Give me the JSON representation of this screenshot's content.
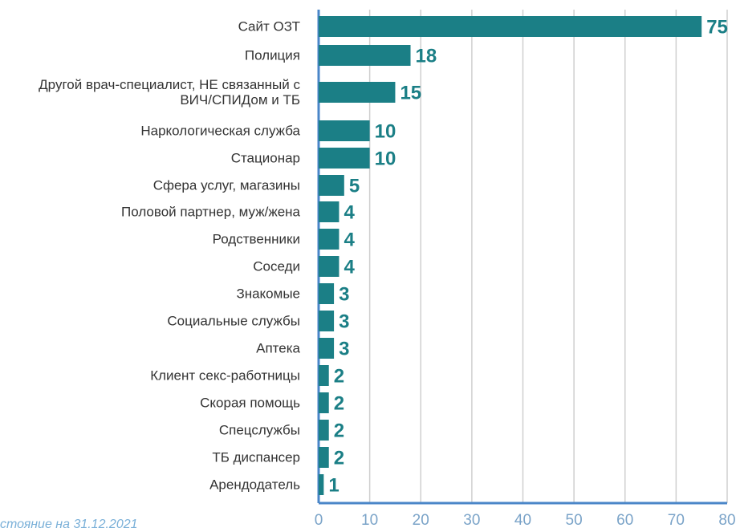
{
  "chart_data": {
    "type": "bar",
    "orientation": "horizontal",
    "categories": [
      "Сайт ОЗТ",
      "Полиция",
      "Другой врач-специалист, НЕ связанный с ВИЧ/СПИДом и ТБ",
      "Наркологическая служба",
      "Стационар",
      "Сфера услуг, магазины",
      "Половой партнер, муж/жена",
      "Родственники",
      "Соседи",
      "Знакомые",
      "Социальные службы",
      "Аптека",
      "Клиент секс-работницы",
      "Скорая помощь",
      "Спецслужбы",
      "ТБ диспансер",
      "Арендодатель"
    ],
    "values": [
      75,
      18,
      15,
      10,
      10,
      5,
      4,
      4,
      4,
      3,
      3,
      3,
      2,
      2,
      2,
      2,
      1
    ],
    "color": "#1b7f86",
    "xlim": [
      0,
      80
    ],
    "xticks": [
      0,
      10,
      20,
      30,
      40,
      50,
      60,
      70,
      80
    ],
    "grid": true,
    "footnote": "стояние на 31.12.2021"
  }
}
